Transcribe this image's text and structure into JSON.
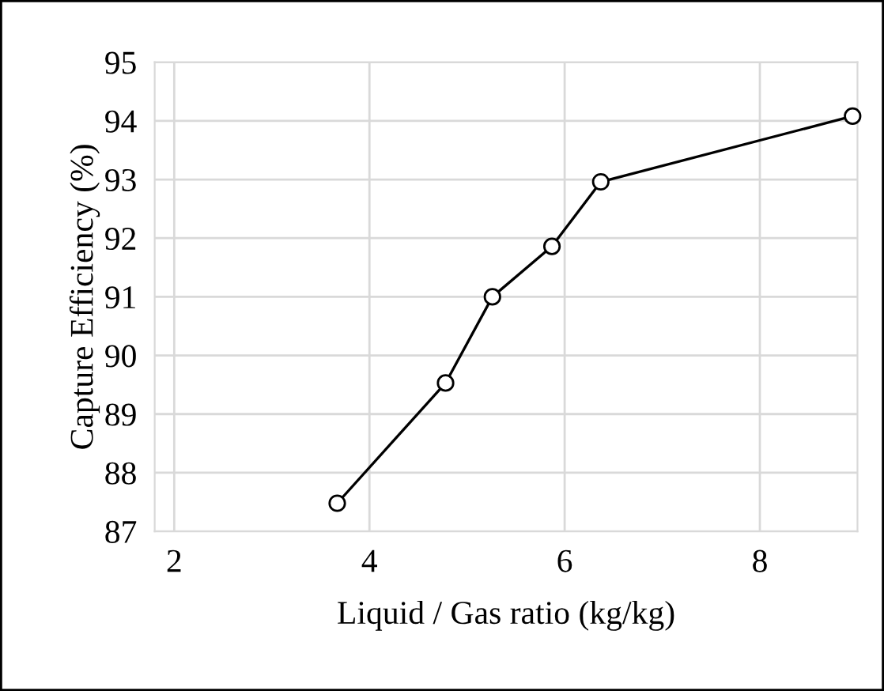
{
  "chart_data": {
    "type": "line",
    "xlabel": "Liquid / Gas ratio (kg/kg)",
    "ylabel": "Capture Efficiency (%)",
    "x": [
      3.67,
      4.78,
      5.26,
      5.87,
      6.37,
      8.95
    ],
    "series": [
      {
        "color": "#000000",
        "values": [
          87.48,
          89.53,
          91.0,
          91.86,
          92.96,
          94.08
        ]
      }
    ],
    "xlim": [
      1.8,
      9.0
    ],
    "xticks": [
      2,
      4,
      6,
      8
    ],
    "ylim": [
      87,
      95
    ],
    "yticks": [
      87,
      88,
      89,
      90,
      91,
      92,
      93,
      94,
      95
    ],
    "grid": true,
    "marker": "circle",
    "line_style": "solid"
  }
}
